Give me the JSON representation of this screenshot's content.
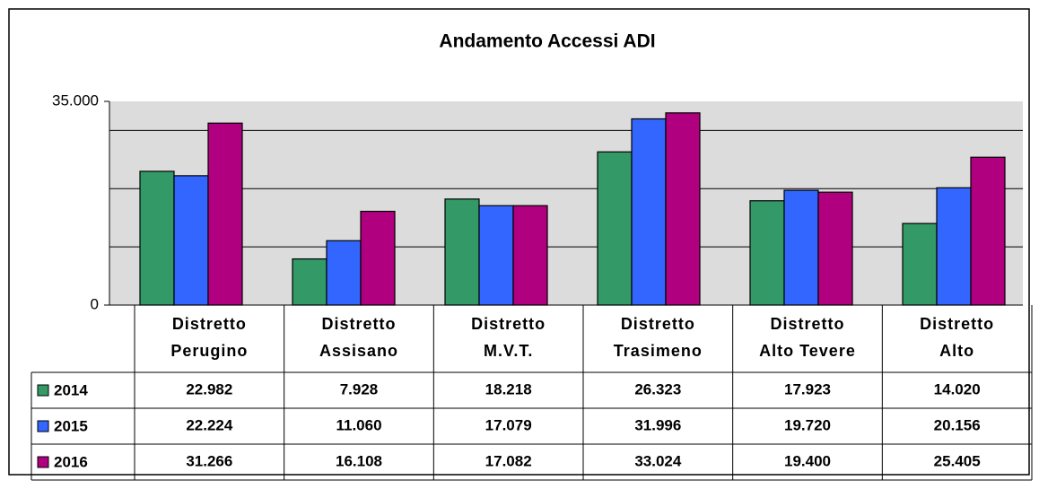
{
  "chart_data": {
    "type": "bar",
    "title": "Andamento Accessi ADI",
    "categories": [
      [
        "Distretto",
        "Perugino"
      ],
      [
        "Distretto",
        "Assisano"
      ],
      [
        "Distretto",
        "M.V.T."
      ],
      [
        "Distretto",
        "Trasimeno"
      ],
      [
        "Distretto",
        "Alto Tevere"
      ],
      [
        "Distretto",
        "Alto"
      ]
    ],
    "series": [
      {
        "name": "2014",
        "color": "#339966",
        "values": [
          22982,
          7928,
          18218,
          26323,
          17923,
          14020
        ],
        "value_labels": [
          "22.982",
          "7.928",
          "18.218",
          "26.323",
          "17.923",
          "14.020"
        ]
      },
      {
        "name": "2015",
        "color": "#3366ff",
        "values": [
          22224,
          11060,
          17079,
          31996,
          19720,
          20156
        ],
        "value_labels": [
          "22.224",
          "11.060",
          "17.079",
          "31.996",
          "19.720",
          "20.156"
        ]
      },
      {
        "name": "2016",
        "color": "#b0007f",
        "values": [
          31266,
          16108,
          17082,
          33024,
          19400,
          25405
        ],
        "value_labels": [
          "31.266",
          "16.108",
          "17.082",
          "33.024",
          "19.400",
          "25.405"
        ]
      }
    ],
    "ylim": [
      0,
      35000
    ],
    "yticks": [
      0,
      {
        "value": 35000,
        "label": "35.000"
      }
    ],
    "ygrid": [
      10000,
      20000,
      30000
    ],
    "grid": true
  }
}
